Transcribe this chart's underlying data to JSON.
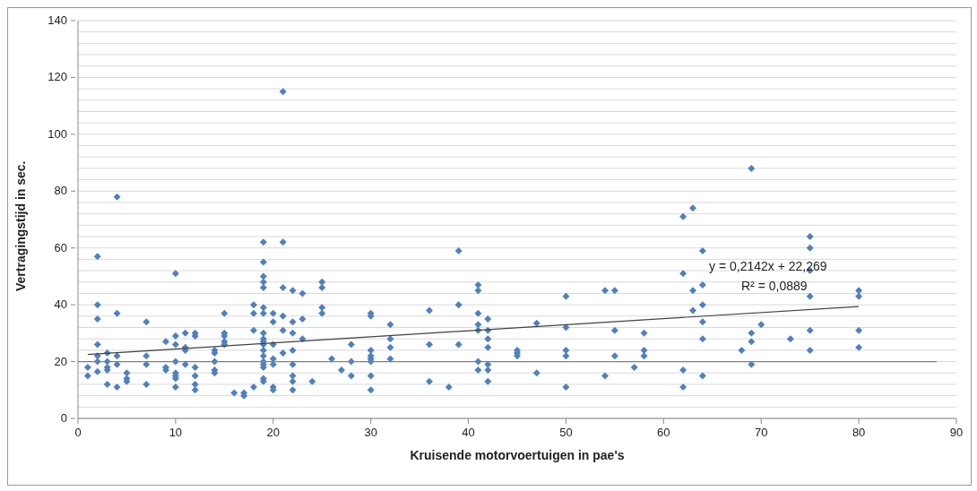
{
  "chart_data": {
    "type": "scatter",
    "xlabel": "Kruisende motorvoertuigen in pae's",
    "ylabel": "Vertragingstijd in sec.",
    "xlim": [
      0,
      90
    ],
    "xticks": [
      0,
      10,
      20,
      30,
      40,
      50,
      60,
      70,
      80,
      90
    ],
    "ylim": [
      0,
      140
    ],
    "yticks": [
      0,
      {
        "value": 4,
        "label": null
      },
      {
        "value": 8,
        "label": null
      },
      {
        "value": 12,
        "label": null
      },
      {
        "value": 16,
        "label": null
      },
      20,
      {
        "value": 24,
        "label": null
      },
      {
        "value": 28,
        "label": null
      },
      {
        "value": 32,
        "label": null
      },
      {
        "value": 36,
        "label": null
      },
      40,
      {
        "value": 44,
        "label": null
      },
      {
        "value": 48,
        "label": null
      },
      {
        "value": 52,
        "label": null
      },
      {
        "value": 56,
        "label": null
      },
      60,
      {
        "value": 64,
        "label": null
      },
      {
        "value": 68,
        "label": null
      },
      {
        "value": 72,
        "label": null
      },
      {
        "value": 76,
        "label": null
      },
      80,
      {
        "value": 84,
        "label": null
      },
      {
        "value": 88,
        "label": null
      },
      {
        "value": 92,
        "label": null
      },
      {
        "value": 96,
        "label": null
      },
      100,
      {
        "value": 104,
        "label": null
      },
      {
        "value": 108,
        "label": null
      },
      {
        "value": 112,
        "label": null
      },
      {
        "value": 116,
        "label": null
      },
      120,
      {
        "value": 124,
        "label": null
      },
      {
        "value": 128,
        "label": null
      },
      {
        "value": 132,
        "label": null
      },
      {
        "value": 136,
        "label": null
      },
      140
    ],
    "grid": "y",
    "legend": false,
    "annotations": [
      "y = 0,2142x + 22,269",
      "R² = 0,0889"
    ],
    "series": [
      {
        "marker": "diamond",
        "color": "#4f81bd",
        "x": [
          1,
          1,
          2,
          2,
          2,
          2,
          2,
          2,
          2,
          3,
          3,
          3,
          3,
          3,
          4,
          4,
          4,
          4,
          4,
          5,
          5,
          5,
          7,
          7,
          7,
          7,
          9,
          9,
          9,
          10,
          10,
          10,
          10,
          10,
          10,
          10,
          10,
          11,
          11,
          11,
          11,
          12,
          12,
          12,
          12,
          12,
          12,
          14,
          14,
          14,
          14,
          14,
          15,
          15,
          15,
          15,
          15,
          16,
          17,
          17,
          18,
          18,
          18,
          18,
          19,
          19,
          19,
          19,
          19,
          19,
          19,
          19,
          19,
          19,
          19,
          19,
          19,
          19,
          19,
          19,
          19,
          19,
          20,
          20,
          20,
          20,
          20,
          20,
          20,
          21,
          21,
          21,
          21,
          21,
          21,
          22,
          22,
          22,
          22,
          22,
          22,
          22,
          22,
          23,
          23,
          23,
          24,
          25,
          25,
          25,
          25,
          26,
          27,
          28,
          28,
          28,
          30,
          30,
          30,
          30,
          30,
          30,
          30,
          30,
          32,
          32,
          32,
          32,
          36,
          36,
          36,
          38,
          39,
          39,
          39,
          41,
          41,
          41,
          41,
          41,
          41,
          41,
          42,
          42,
          42,
          42,
          42,
          42,
          42,
          45,
          45,
          45,
          47,
          47,
          50,
          50,
          50,
          50,
          50,
          54,
          54,
          55,
          55,
          55,
          57,
          58,
          58,
          58,
          62,
          62,
          62,
          62,
          63,
          63,
          63,
          64,
          64,
          64,
          64,
          64,
          64,
          68,
          69,
          69,
          69,
          69,
          70,
          73,
          75,
          75,
          75,
          75,
          75,
          75,
          80,
          80,
          80,
          80
        ],
        "values": [
          18,
          15,
          57,
          40,
          35,
          26,
          22,
          20,
          16.5,
          23,
          20,
          18,
          17,
          12,
          78,
          37,
          22,
          19,
          11,
          16,
          14,
          13,
          34,
          22,
          19,
          12,
          27,
          18,
          17,
          51,
          29,
          26,
          20,
          16,
          15,
          14,
          11,
          30,
          25,
          24,
          19,
          30,
          29,
          18,
          15,
          12,
          10,
          24,
          23,
          20,
          17,
          16,
          37,
          30,
          29,
          27,
          26,
          9,
          9,
          8,
          40,
          37,
          31,
          11,
          62,
          55,
          50,
          48,
          46,
          39,
          37,
          30,
          28,
          27,
          26,
          24,
          22,
          20,
          19,
          18,
          14,
          13,
          37,
          34,
          26,
          21,
          19,
          11,
          10,
          115,
          62,
          46,
          36,
          31,
          23,
          45,
          34,
          30,
          24,
          19,
          15,
          13,
          10,
          44,
          35,
          28,
          13,
          48,
          46,
          39,
          37,
          21,
          17,
          26,
          20,
          15,
          37,
          36,
          24,
          22,
          21,
          20,
          15,
          10,
          33,
          28,
          25,
          21,
          38,
          26,
          13,
          11,
          59,
          40,
          26,
          47,
          45,
          37,
          33,
          31,
          20,
          17,
          35,
          31,
          28,
          25,
          19,
          17,
          13,
          24,
          23,
          22,
          33.5,
          16,
          43,
          32,
          24,
          22,
          11,
          45,
          15,
          45,
          31,
          22,
          18,
          30,
          24,
          22,
          71,
          51,
          17,
          11,
          74,
          45,
          38,
          59,
          47,
          40,
          34,
          28,
          15,
          24,
          88,
          30,
          27,
          19,
          33,
          28,
          64,
          60,
          52,
          43,
          31,
          24,
          45,
          43,
          31,
          25
        ]
      },
      {
        "type": "line",
        "marker": "none",
        "color": "#404040",
        "x": [
          1,
          80
        ],
        "values": [
          22.5,
          39.4
        ]
      },
      {
        "type": "line",
        "marker": "none",
        "color": "#808080",
        "x": [
          0,
          88
        ],
        "values": [
          20,
          20
        ]
      }
    ]
  }
}
